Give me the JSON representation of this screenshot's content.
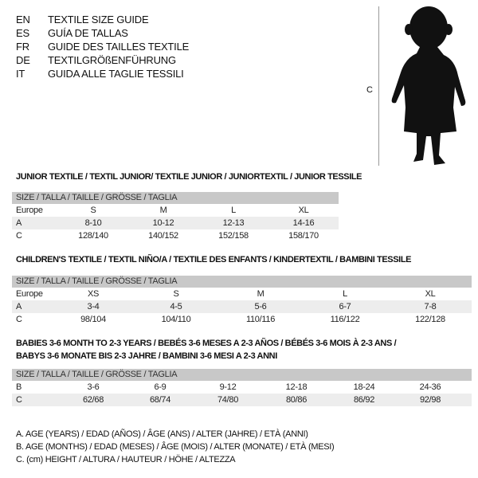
{
  "languages": [
    {
      "code": "EN",
      "text": "TEXTILE SIZE GUIDE"
    },
    {
      "code": "ES",
      "text": "GUÍA DE TALLAS"
    },
    {
      "code": "FR",
      "text": "GUIDE DES TAILLES TEXTILE"
    },
    {
      "code": "DE",
      "text": "TEXTILGRÖßENFÜHRUNG"
    },
    {
      "code": "IT",
      "text": "GUIDA ALLE TAGLIE TESSILI"
    }
  ],
  "figure": {
    "measure_label": "C",
    "icon": "child-silhouette"
  },
  "header_label": "SIZE / TALLA / TAILLE / GRÖSSE / TAGLIA",
  "junior": {
    "title": "JUNIOR TEXTILE / TEXTIL JUNIOR/ TEXTILE JUNIOR / JUNIORTEXTIL / JUNIOR TESSILE",
    "rows": [
      {
        "label": "Europe",
        "values": [
          "S",
          "M",
          "L",
          "XL"
        ]
      },
      {
        "label": "A",
        "values": [
          "8-10",
          "10-12",
          "12-13",
          "14-16"
        ]
      },
      {
        "label": "C",
        "values": [
          "128/140",
          "140/152",
          "152/158",
          "158/170"
        ]
      }
    ]
  },
  "children": {
    "title": "CHILDREN'S TEXTILE / TEXTIL NIÑO/A / TEXTILE DES ENFANTS / KINDERTEXTIL / BAMBINI TESSILE",
    "rows": [
      {
        "label": "Europe",
        "values": [
          "XS",
          "S",
          "M",
          "L",
          "XL"
        ]
      },
      {
        "label": "A",
        "values": [
          "3-4",
          "4-5",
          "5-6",
          "6-7",
          "7-8"
        ]
      },
      {
        "label": "C",
        "values": [
          "98/104",
          "104/110",
          "110/116",
          "116/122",
          "122/128"
        ]
      }
    ]
  },
  "babies": {
    "title_line1": "BABIES 3-6 MONTH TO 2-3 YEARS / BEBÉS 3-6 MESES A 2-3 AÑOS / BÉBÉS 3-6 MOIS À 2-3 ANS /",
    "title_line2": "BABYS 3-6 MONATE BIS 2-3 JAHRE / BAMBINI 3-6 MESI A 2-3 ANNI",
    "rows": [
      {
        "label": "B",
        "values": [
          "3-6",
          "6-9",
          "9-12",
          "12-18",
          "18-24",
          "24-36"
        ]
      },
      {
        "label": "C",
        "values": [
          "62/68",
          "68/74",
          "74/80",
          "80/86",
          "86/92",
          "92/98"
        ]
      }
    ]
  },
  "legend": [
    "A. AGE (YEARS) / EDAD (AÑOS) / ÂGE (ANS) / ALTER (JAHRE) / ETÀ (ANNI)",
    "B. AGE (MONTHS) / EDAD (MESES) / ÂGE (MOIS) / ALTER (MONATE) / ETÀ (MESI)",
    "C. (cm) HEIGHT / ALTURA / HAUTEUR / HÖHE / ALTEZZA"
  ]
}
